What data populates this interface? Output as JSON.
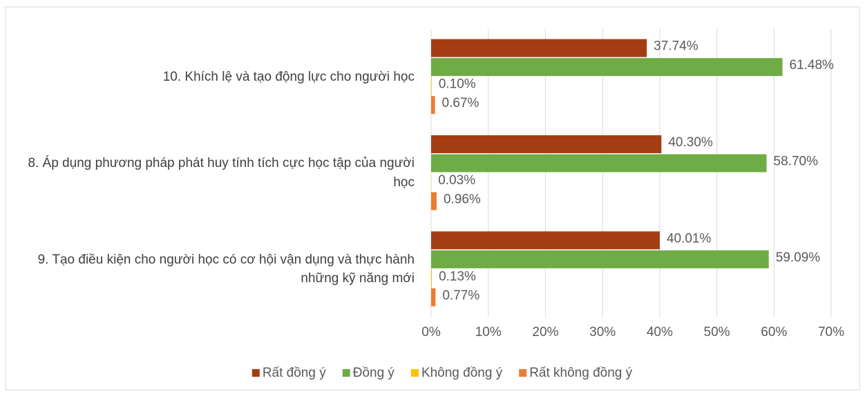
{
  "chart_data": {
    "type": "bar",
    "orientation": "horizontal",
    "categories": [
      "10. Khích lệ và tạo động lực cho người học",
      "8. Áp dụng phương pháp phát huy tính tích cực học tập của người học",
      "9. Tạo điều kiện cho người học có cơ hội vận dụng và thực hành những kỹ năng mới"
    ],
    "series": [
      {
        "name": "Rất đồng ý",
        "color": "#a43e12",
        "values": [
          37.74,
          40.3,
          40.01
        ],
        "value_labels": [
          "37.74%",
          "40.30%",
          "40.01%"
        ]
      },
      {
        "name": "Đồng ý",
        "color": "#6fac45",
        "values": [
          61.48,
          58.7,
          59.09
        ],
        "value_labels": [
          "61.48%",
          "58.70%",
          "59.09%"
        ]
      },
      {
        "name": "Không đồng ý",
        "color": "#ffc000",
        "values": [
          0.1,
          0.03,
          0.13
        ],
        "value_labels": [
          "0.10%",
          "0.03%",
          "0.13%"
        ]
      },
      {
        "name": "Rất không đồng ý",
        "color": "#ed7d31",
        "values": [
          0.67,
          0.96,
          0.77
        ],
        "value_labels": [
          "0.67%",
          "0.96%",
          "0.77%"
        ]
      }
    ],
    "xlim": [
      0,
      70
    ],
    "xticks": [
      {
        "value": 0,
        "label": "0%"
      },
      {
        "value": 10,
        "label": "10%"
      },
      {
        "value": 20,
        "label": "20%"
      },
      {
        "value": 30,
        "label": "30%"
      },
      {
        "value": 40,
        "label": "40%"
      },
      {
        "value": 50,
        "label": "50%"
      },
      {
        "value": 60,
        "label": "60%"
      },
      {
        "value": 70,
        "label": "70%"
      }
    ],
    "grid": true,
    "legend": "bottom"
  }
}
